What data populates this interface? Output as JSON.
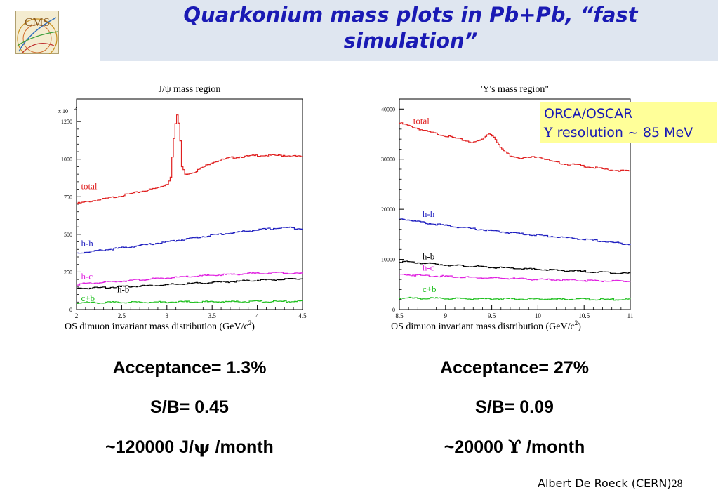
{
  "slide": {
    "title": "Quarkonium mass plots in Pb+Pb, “fast\nsimulation”",
    "logo_text": "CMS",
    "footer": "Albert De Roeck (CERN)",
    "page_number": "28",
    "colors": {
      "title": "#1a1ab4",
      "header_band": "#dfe6f0",
      "annotation_bg": "#ffff99"
    }
  },
  "annotation": {
    "line1": "ORCA/OSCAR",
    "line2_symbol": "Υ",
    "line2_text": " resolution ~ 85 MeV"
  },
  "left_stats": {
    "acceptance": "Acceptance= 1.3%",
    "sb": "S/B= 0.45",
    "rate_prefix": "~",
    "rate_value": "120000 J/",
    "rate_symbol": "ψ",
    "rate_suffix": " /month"
  },
  "right_stats": {
    "acceptance": "Acceptance= 27%",
    "sb": "S/B= 0.09",
    "rate_prefix": "~",
    "rate_value": "20000 ",
    "rate_symbol": "ϒ",
    "rate_suffix": " /month"
  },
  "chart_data": [
    {
      "type": "line",
      "title": "J/ψ mass region",
      "xlabel": "OS dimuon invariant mass distribution (GeV/c",
      "xlabel_sup": "2",
      "xlabel_end": ")",
      "y_multiplier_label": "x 10",
      "y_multiplier_exp": "2",
      "xlim": [
        2,
        4.5
      ],
      "ylim": [
        0,
        1400
      ],
      "x_ticks": [
        2,
        2.5,
        3,
        3.5,
        4,
        4.5
      ],
      "x_tick_labels": [
        "2",
        "2.5",
        "3",
        "3.5",
        "4",
        "4.5"
      ],
      "y_ticks": [
        0,
        250,
        500,
        750,
        1000,
        1250
      ],
      "y_tick_labels": [
        "0",
        "250",
        "500",
        "750",
        "1000",
        "1250"
      ],
      "series": [
        {
          "name": "total",
          "color": "#e02020",
          "x": [
            2.0,
            2.3,
            2.6,
            2.9,
            3.0,
            3.04,
            3.06,
            3.08,
            3.1,
            3.12,
            3.14,
            3.16,
            3.2,
            3.3,
            3.5,
            3.7,
            4.0,
            4.3,
            4.5
          ],
          "y": [
            705,
            735,
            770,
            810,
            835,
            890,
            1080,
            1180,
            1300,
            1270,
            1150,
            950,
            900,
            915,
            980,
            1010,
            1025,
            1025,
            1015
          ],
          "label_x": 2.05,
          "label_y": 800
        },
        {
          "name": "h-h",
          "color": "#2020c0",
          "x": [
            2.0,
            2.5,
            3.0,
            3.5,
            4.0,
            4.3,
            4.5
          ],
          "y": [
            375,
            410,
            450,
            495,
            530,
            545,
            538
          ],
          "label_x": 2.05,
          "label_y": 420
        },
        {
          "name": "h-c",
          "color": "#e020e0",
          "x": [
            2.0,
            2.5,
            3.0,
            3.5,
            4.0,
            4.3,
            4.5
          ],
          "y": [
            168,
            190,
            210,
            228,
            242,
            245,
            238
          ],
          "label_x": 2.05,
          "label_y": 200
        },
        {
          "name": "h-b",
          "color": "#000000",
          "x": [
            2.0,
            2.5,
            3.0,
            3.5,
            4.0,
            4.5
          ],
          "y": [
            140,
            152,
            165,
            180,
            195,
            205
          ],
          "label_x": 2.45,
          "label_y": 115
        },
        {
          "name": "c+b",
          "color": "#20c020",
          "x": [
            2.0,
            2.5,
            3.0,
            3.5,
            4.0,
            4.5
          ],
          "y": [
            45,
            48,
            50,
            52,
            53,
            55
          ],
          "label_x": 2.05,
          "label_y": 55
        }
      ]
    },
    {
      "type": "line",
      "title": "'Y's mass region\"",
      "xlabel": "OS dimuon invariant mass distribution (GeV/c",
      "xlabel_sup": "2",
      "xlabel_end": ")",
      "xlim": [
        8.5,
        11
      ],
      "ylim": [
        0,
        42000
      ],
      "x_ticks": [
        8.5,
        9,
        9.5,
        10,
        10.5,
        11
      ],
      "x_tick_labels": [
        "8.5",
        "9",
        "9.5",
        "10",
        "10.5",
        "11"
      ],
      "y_ticks": [
        0,
        10000,
        20000,
        30000,
        40000
      ],
      "y_tick_labels": [
        "0",
        "10000",
        "20000",
        "30000",
        "40000"
      ],
      "series": [
        {
          "name": "total",
          "color": "#e02020",
          "x": [
            8.5,
            8.8,
            9.1,
            9.3,
            9.4,
            9.46,
            9.52,
            9.6,
            9.7,
            9.8,
            9.9,
            10.0,
            10.05,
            10.15,
            10.3,
            10.4,
            10.6,
            10.8,
            11.0
          ],
          "y": [
            37200,
            35500,
            34200,
            33300,
            34000,
            35200,
            34500,
            32000,
            30700,
            30300,
            30300,
            30600,
            30200,
            29500,
            29000,
            28900,
            28300,
            27800,
            27600
          ],
          "label_x": 8.65,
          "label_y": 37000
        },
        {
          "name": "h-h",
          "color": "#2020c0",
          "x": [
            8.5,
            8.8,
            9.2,
            9.6,
            10.0,
            10.4,
            10.8,
            11.0
          ],
          "y": [
            18200,
            17200,
            16300,
            15500,
            14800,
            14200,
            13400,
            13000
          ],
          "label_x": 8.75,
          "label_y": 18500
        },
        {
          "name": "h-b",
          "color": "#000000",
          "x": [
            8.5,
            9.0,
            9.5,
            10.0,
            10.5,
            11.0
          ],
          "y": [
            9600,
            8900,
            8400,
            8000,
            7600,
            7200
          ],
          "label_x": 8.75,
          "label_y": 10000
        },
        {
          "name": "h-c",
          "color": "#e020e0",
          "x": [
            8.5,
            9.0,
            9.5,
            10.0,
            10.5,
            11.0
          ],
          "y": [
            7000,
            6600,
            6300,
            6000,
            5800,
            5600
          ],
          "label_x": 8.75,
          "label_y": 7800
        },
        {
          "name": "c+b",
          "color": "#20c020",
          "x": [
            8.5,
            9.0,
            9.5,
            10.0,
            10.5,
            11.0
          ],
          "y": [
            2300,
            2200,
            2150,
            2100,
            2050,
            2000
          ],
          "label_x": 8.75,
          "label_y": 3500
        }
      ]
    }
  ]
}
